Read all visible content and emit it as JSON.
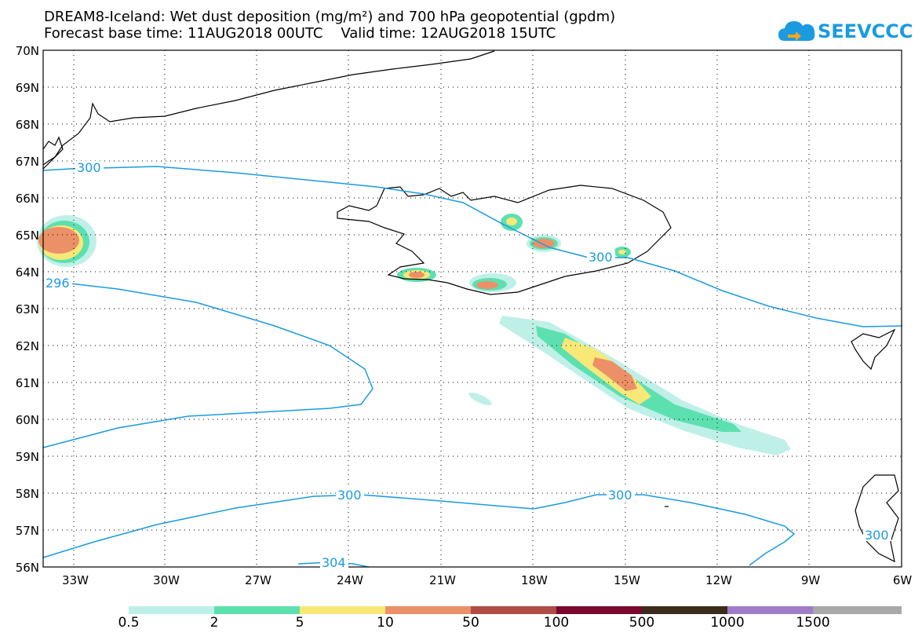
{
  "title": {
    "line1": "DREAM8-Iceland: Wet dust deposition (mg/m²) and 700 hPa geopotential (gpdm)",
    "line2": "Forecast base time: 11AUG2018 00UTC    Valid time: 12AUG2018 15UTC"
  },
  "logo": {
    "text": "SEEVCCC",
    "color": "#1a9be0"
  },
  "map": {
    "lat_labels": [
      "70N",
      "69N",
      "68N",
      "67N",
      "66N",
      "65N",
      "64N",
      "63N",
      "62N",
      "61N",
      "60N",
      "59N",
      "58N",
      "57N",
      "56N"
    ],
    "lon_labels": [
      "33W",
      "30W",
      "27W",
      "24W",
      "21W",
      "18W",
      "15W",
      "12W",
      "9W",
      "6W"
    ],
    "lon_range": [
      -34,
      -6
    ],
    "lat_range": [
      56,
      70
    ],
    "contour_color": "#1a9be0",
    "contour_labels": [
      "300",
      "296",
      "300",
      "300",
      "300",
      "304",
      "300"
    ]
  },
  "legend": {
    "colors": [
      "#bff0e8",
      "#5de0b0",
      "#f8e878",
      "#ec9068",
      "#b04c44",
      "#7c0830",
      "#3c2c1c",
      "#a07cc8",
      "#a8a8a8"
    ],
    "labels": [
      "0.5",
      "2",
      "5",
      "10",
      "50",
      "100",
      "500",
      "1000",
      "1500"
    ]
  }
}
